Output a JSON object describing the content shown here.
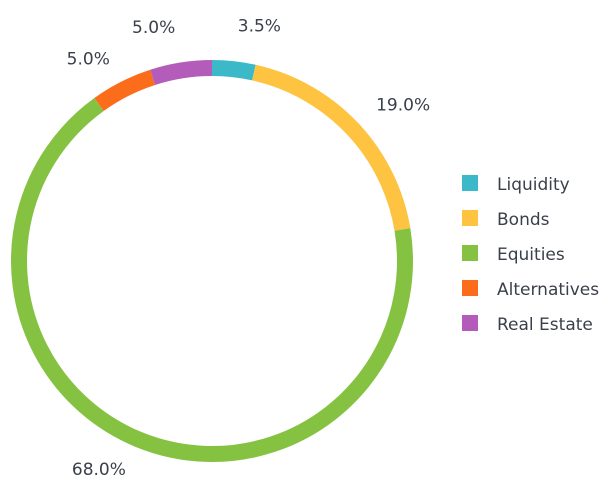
{
  "chart_data": {
    "type": "donut",
    "categories": [
      "Liquidity",
      "Bonds",
      "Equities",
      "Alternatives",
      "Real Estate"
    ],
    "values": [
      3.5,
      19.0,
      68.0,
      5.0,
      5.0
    ],
    "value_labels": [
      "3.5%",
      "19.0%",
      "68.0%",
      "5.0%",
      "5.0%"
    ],
    "colors": [
      "#3cb9c9",
      "#fec341",
      "#86c241",
      "#fb6d1b",
      "#b35cb9"
    ],
    "legend": "right"
  }
}
